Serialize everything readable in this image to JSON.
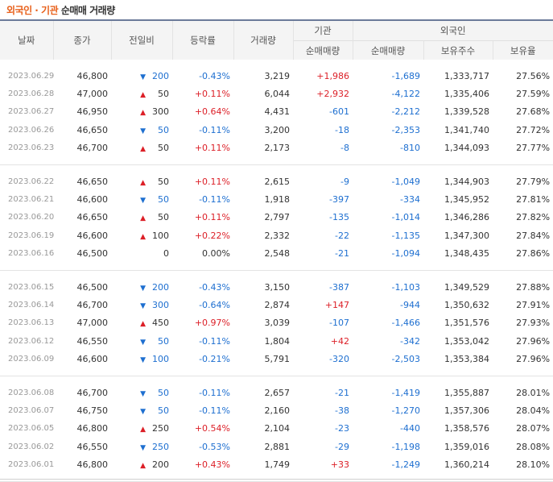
{
  "title": {
    "part1": "외국인 · 기관",
    "part2": "순매매 거래량"
  },
  "headers": {
    "date": "날짜",
    "close": "종가",
    "change": "전일비",
    "rate": "등락률",
    "volume": "거래량",
    "inst": "기관",
    "inst_net": "순매매량",
    "foreign": "외국인",
    "foreign_net": "순매매량",
    "holdings": "보유주수",
    "holdrate": "보유율"
  },
  "groups": [
    [
      {
        "date": "2023.06.29",
        "close": "46,800",
        "dir": "down",
        "change": "200",
        "rate": "-0.43%",
        "volume": "3,219",
        "inst": "+1,986",
        "foreign": "-1,689",
        "hold": "1,333,717",
        "holdrate": "27.56%"
      },
      {
        "date": "2023.06.28",
        "close": "47,000",
        "dir": "up",
        "change": "50",
        "rate": "+0.11%",
        "volume": "6,044",
        "inst": "+2,932",
        "foreign": "-4,122",
        "hold": "1,335,406",
        "holdrate": "27.59%"
      },
      {
        "date": "2023.06.27",
        "close": "46,950",
        "dir": "up",
        "change": "300",
        "rate": "+0.64%",
        "volume": "4,431",
        "inst": "-601",
        "foreign": "-2,212",
        "hold": "1,339,528",
        "holdrate": "27.68%"
      },
      {
        "date": "2023.06.26",
        "close": "46,650",
        "dir": "down",
        "change": "50",
        "rate": "-0.11%",
        "volume": "3,200",
        "inst": "-18",
        "foreign": "-2,353",
        "hold": "1,341,740",
        "holdrate": "27.72%"
      },
      {
        "date": "2023.06.23",
        "close": "46,700",
        "dir": "up",
        "change": "50",
        "rate": "+0.11%",
        "volume": "2,173",
        "inst": "-8",
        "foreign": "-810",
        "hold": "1,344,093",
        "holdrate": "27.77%"
      }
    ],
    [
      {
        "date": "2023.06.22",
        "close": "46,650",
        "dir": "up",
        "change": "50",
        "rate": "+0.11%",
        "volume": "2,615",
        "inst": "-9",
        "foreign": "-1,049",
        "hold": "1,344,903",
        "holdrate": "27.79%"
      },
      {
        "date": "2023.06.21",
        "close": "46,600",
        "dir": "down",
        "change": "50",
        "rate": "-0.11%",
        "volume": "1,918",
        "inst": "-397",
        "foreign": "-334",
        "hold": "1,345,952",
        "holdrate": "27.81%"
      },
      {
        "date": "2023.06.20",
        "close": "46,650",
        "dir": "up",
        "change": "50",
        "rate": "+0.11%",
        "volume": "2,797",
        "inst": "-135",
        "foreign": "-1,014",
        "hold": "1,346,286",
        "holdrate": "27.82%"
      },
      {
        "date": "2023.06.19",
        "close": "46,600",
        "dir": "up",
        "change": "100",
        "rate": "+0.22%",
        "volume": "2,332",
        "inst": "-22",
        "foreign": "-1,135",
        "hold": "1,347,300",
        "holdrate": "27.84%"
      },
      {
        "date": "2023.06.16",
        "close": "46,500",
        "dir": "none",
        "change": "0",
        "rate": "0.00%",
        "volume": "2,548",
        "inst": "-21",
        "foreign": "-1,094",
        "hold": "1,348,435",
        "holdrate": "27.86%"
      }
    ],
    [
      {
        "date": "2023.06.15",
        "close": "46,500",
        "dir": "down",
        "change": "200",
        "rate": "-0.43%",
        "volume": "3,150",
        "inst": "-387",
        "foreign": "-1,103",
        "hold": "1,349,529",
        "holdrate": "27.88%"
      },
      {
        "date": "2023.06.14",
        "close": "46,700",
        "dir": "down",
        "change": "300",
        "rate": "-0.64%",
        "volume": "2,874",
        "inst": "+147",
        "foreign": "-944",
        "hold": "1,350,632",
        "holdrate": "27.91%"
      },
      {
        "date": "2023.06.13",
        "close": "47,000",
        "dir": "up",
        "change": "450",
        "rate": "+0.97%",
        "volume": "3,039",
        "inst": "-107",
        "foreign": "-1,466",
        "hold": "1,351,576",
        "holdrate": "27.93%"
      },
      {
        "date": "2023.06.12",
        "close": "46,550",
        "dir": "down",
        "change": "50",
        "rate": "-0.11%",
        "volume": "1,804",
        "inst": "+42",
        "foreign": "-342",
        "hold": "1,353,042",
        "holdrate": "27.96%"
      },
      {
        "date": "2023.06.09",
        "close": "46,600",
        "dir": "down",
        "change": "100",
        "rate": "-0.21%",
        "volume": "5,791",
        "inst": "-320",
        "foreign": "-2,503",
        "hold": "1,353,384",
        "holdrate": "27.96%"
      }
    ],
    [
      {
        "date": "2023.06.08",
        "close": "46,700",
        "dir": "down",
        "change": "50",
        "rate": "-0.11%",
        "volume": "2,657",
        "inst": "-21",
        "foreign": "-1,419",
        "hold": "1,355,887",
        "holdrate": "28.01%"
      },
      {
        "date": "2023.06.07",
        "close": "46,750",
        "dir": "down",
        "change": "50",
        "rate": "-0.11%",
        "volume": "2,160",
        "inst": "-38",
        "foreign": "-1,270",
        "hold": "1,357,306",
        "holdrate": "28.04%"
      },
      {
        "date": "2023.06.05",
        "close": "46,800",
        "dir": "up",
        "change": "250",
        "rate": "+0.54%",
        "volume": "2,104",
        "inst": "-23",
        "foreign": "-440",
        "hold": "1,358,576",
        "holdrate": "28.07%"
      },
      {
        "date": "2023.06.02",
        "close": "46,550",
        "dir": "down",
        "change": "250",
        "rate": "-0.53%",
        "volume": "2,881",
        "inst": "-29",
        "foreign": "-1,198",
        "hold": "1,359,016",
        "holdrate": "28.08%"
      },
      {
        "date": "2023.06.01",
        "close": "46,800",
        "dir": "up",
        "change": "200",
        "rate": "+0.43%",
        "volume": "1,749",
        "inst": "+33",
        "foreign": "-1,249",
        "hold": "1,360,214",
        "holdrate": "28.10%"
      }
    ]
  ],
  "colors": {
    "up": "#dc1f27",
    "down": "#1e6fd0",
    "title_accent": "#e8601a"
  }
}
